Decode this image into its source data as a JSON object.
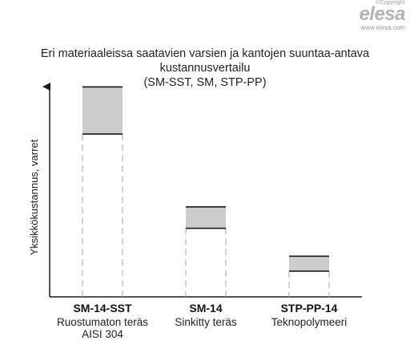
{
  "logo": {
    "copyright": "©Copyright",
    "brand": "elesa",
    "url": "www.elesa.com"
  },
  "chart_data": {
    "type": "bar",
    "title": "Eri materiaaleissa saatavien varsien ja kantojen suuntaa-antava kustannusvertailu",
    "subtitle": "(SM-SST, SM, STP-PP)",
    "ylabel": "Yksikkökustannus, varret",
    "xlabel": "",
    "y_ticks": "none",
    "grid": false,
    "categories": [
      {
        "name": "SM-14-SST",
        "lines": [
          "Ruostumaton teräs",
          "AISI 304"
        ]
      },
      {
        "name": "SM-14",
        "lines": [
          "Sinkitty teräs"
        ]
      },
      {
        "name": "STP-PP-14",
        "lines": [
          "Teknopolymeeri"
        ]
      }
    ],
    "bars": [
      {
        "low": 0.76,
        "high": 0.98
      },
      {
        "low": 0.32,
        "high": 0.42
      },
      {
        "low": 0.12,
        "high": 0.19
      }
    ],
    "ylim": [
      0,
      1
    ],
    "colors": {
      "range_fill": "#cccccc",
      "stroke": "#1a1a1a",
      "dashed": "#b5b5b5"
    }
  }
}
